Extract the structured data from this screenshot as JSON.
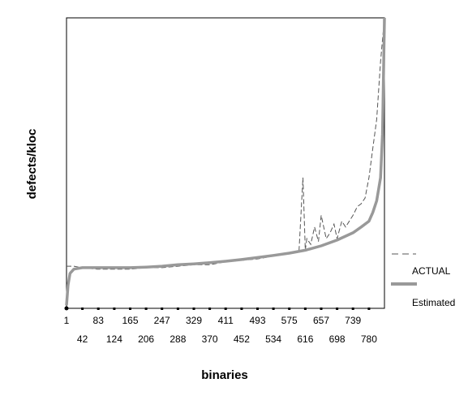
{
  "chart_data": {
    "type": "line",
    "xlabel": "binaries",
    "ylabel": "defects/kloc",
    "xlim": [
      1,
      820
    ],
    "ylim": [
      0,
      1
    ],
    "x_tick_labels_row1": [
      "1",
      "83",
      "165",
      "247",
      "329",
      "411",
      "493",
      "575",
      "657",
      "739"
    ],
    "x_tick_labels_row2": [
      "42",
      "124",
      "206",
      "288",
      "370",
      "452",
      "534",
      "616",
      "698",
      "780"
    ],
    "legend": {
      "placement": "right",
      "entries": [
        {
          "label": "ACTUAL",
          "style": "dashed",
          "color": "#555555"
        },
        {
          "label": "Estimated",
          "style": "solid-thick",
          "color": "#999999"
        }
      ]
    },
    "series": [
      {
        "name": "ACTUAL",
        "style": "dashed",
        "color": "#555555",
        "x": [
          1,
          20,
          40,
          80,
          120,
          165,
          206,
          247,
          288,
          329,
          370,
          411,
          452,
          493,
          534,
          575,
          600,
          610,
          616,
          620,
          630,
          640,
          650,
          657,
          670,
          680,
          690,
          698,
          710,
          720,
          739,
          750,
          760,
          770,
          780,
          790,
          800,
          810,
          820
        ],
        "y": [
          0.145,
          0.145,
          0.14,
          0.135,
          0.135,
          0.135,
          0.14,
          0.14,
          0.145,
          0.15,
          0.15,
          0.16,
          0.165,
          0.17,
          0.18,
          0.19,
          0.2,
          0.45,
          0.2,
          0.24,
          0.22,
          0.28,
          0.23,
          0.32,
          0.24,
          0.26,
          0.29,
          0.24,
          0.3,
          0.28,
          0.32,
          0.35,
          0.36,
          0.38,
          0.45,
          0.55,
          0.65,
          0.85,
          1.0
        ]
      },
      {
        "name": "Estimated",
        "style": "solid-thick",
        "color": "#999999",
        "x": [
          1,
          5,
          10,
          20,
          42,
          83,
          124,
          165,
          206,
          247,
          288,
          329,
          370,
          411,
          452,
          493,
          534,
          575,
          616,
          657,
          698,
          739,
          760,
          780,
          790,
          800,
          810,
          815,
          820
        ],
        "y": [
          0.01,
          0.08,
          0.12,
          0.135,
          0.14,
          0.14,
          0.14,
          0.14,
          0.142,
          0.145,
          0.15,
          0.153,
          0.157,
          0.162,
          0.168,
          0.175,
          0.182,
          0.19,
          0.2,
          0.215,
          0.235,
          0.26,
          0.28,
          0.3,
          0.33,
          0.37,
          0.45,
          0.6,
          1.0
        ]
      }
    ]
  }
}
